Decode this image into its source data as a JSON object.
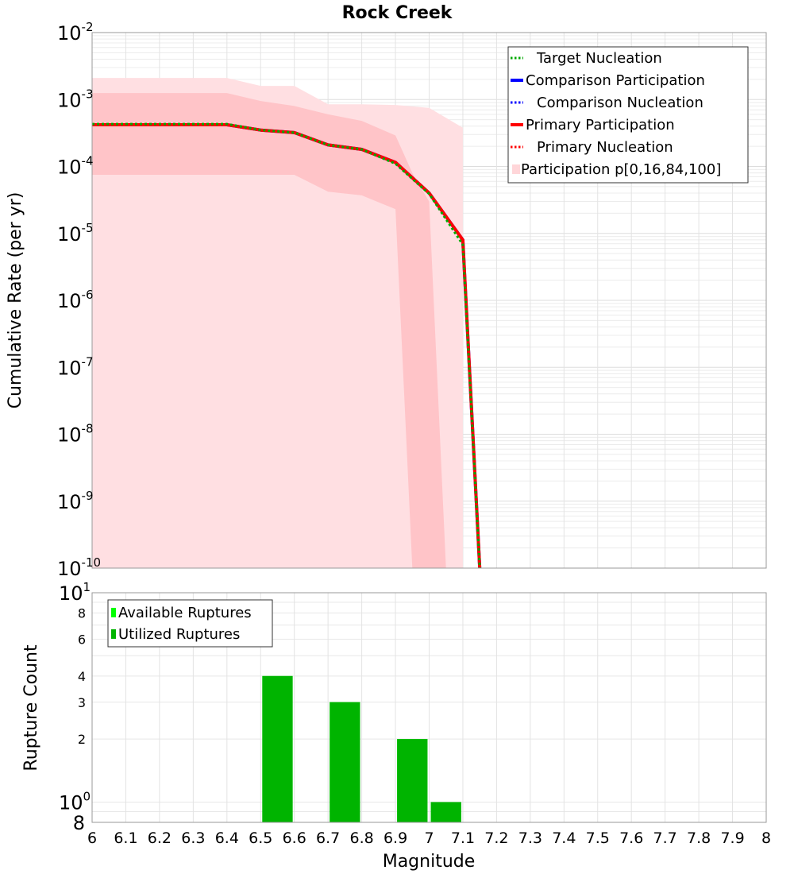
{
  "chart_data": [
    {
      "type": "line",
      "title": "Rock Creek",
      "xlabel": "",
      "ylabel": "Cumulative Rate (per yr)",
      "xlim": [
        6,
        8
      ],
      "ylim": [
        1e-10,
        0.01
      ],
      "yscale": "log",
      "grid": true,
      "legend_position": "top-right",
      "y_ticks": [
        {
          "base": "10",
          "exp": "-2"
        },
        {
          "base": "10",
          "exp": "-3"
        },
        {
          "base": "10",
          "exp": "-4"
        },
        {
          "base": "10",
          "exp": "-5"
        },
        {
          "base": "10",
          "exp": "-6"
        },
        {
          "base": "10",
          "exp": "-7"
        },
        {
          "base": "10",
          "exp": "-8"
        },
        {
          "base": "10",
          "exp": "-9"
        },
        {
          "base": "10",
          "exp": "-10"
        }
      ],
      "legend": [
        {
          "label": "Target Nucleation",
          "color": "#00aa00",
          "style": "dotted"
        },
        {
          "label": "Comparison Participation",
          "color": "#0000ff",
          "style": "solid"
        },
        {
          "label": "Comparison Nucleation",
          "color": "#0000ff",
          "style": "dotted"
        },
        {
          "label": "Primary Participation",
          "color": "#ff0000",
          "style": "solid"
        },
        {
          "label": "Primary Nucleation",
          "color": "#ff0000",
          "style": "dotted"
        },
        {
          "label": "Participation p[0,16,84,100]",
          "color": "#ffd6d9",
          "style": "band"
        }
      ],
      "series": [
        {
          "name": "Target Nucleation",
          "x": [
            6.0,
            6.4,
            6.5,
            6.6,
            6.7,
            6.8,
            6.9,
            7.0,
            7.1,
            7.15
          ],
          "y": [
            0.00043,
            0.00043,
            0.00035,
            0.00032,
            0.00021,
            0.00018,
            0.00011,
            3.9e-05,
            6.8e-06,
            1e-10
          ],
          "color": "#00aa00",
          "style": "dotted"
        },
        {
          "name": "Comparison Participation",
          "x": [
            6.0,
            6.4,
            6.5,
            6.6,
            6.7,
            6.8,
            6.9,
            7.0,
            7.1,
            7.15
          ],
          "y": [
            0.00042,
            0.00042,
            0.00035,
            0.00032,
            0.00021,
            0.00018,
            0.000115,
            4e-05,
            8e-06,
            1e-10
          ],
          "color": "#0000ff",
          "style": "solid"
        },
        {
          "name": "Comparison Nucleation",
          "x": [
            6.0,
            6.4,
            6.5,
            6.6,
            6.7,
            6.8,
            6.9,
            7.0,
            7.1,
            7.15
          ],
          "y": [
            0.00042,
            0.00042,
            0.00035,
            0.00032,
            0.00021,
            0.00018,
            0.000115,
            4e-05,
            8e-06,
            1e-10
          ],
          "color": "#0000ff",
          "style": "dotted"
        },
        {
          "name": "Primary Participation",
          "x": [
            6.0,
            6.4,
            6.5,
            6.6,
            6.7,
            6.8,
            6.9,
            7.0,
            7.1,
            7.15
          ],
          "y": [
            0.00042,
            0.00042,
            0.00035,
            0.00032,
            0.00021,
            0.00018,
            0.000115,
            4e-05,
            8e-06,
            1e-10
          ],
          "color": "#ff0000",
          "style": "solid"
        },
        {
          "name": "Primary Nucleation",
          "x": [
            6.0,
            6.4,
            6.5,
            6.6,
            6.7,
            6.8,
            6.9,
            7.0,
            7.1,
            7.15
          ],
          "y": [
            0.00042,
            0.00042,
            0.00035,
            0.00032,
            0.00021,
            0.00018,
            0.000115,
            4e-05,
            8e-06,
            1e-10
          ],
          "color": "#ff0000",
          "style": "dotted"
        }
      ],
      "bands": [
        {
          "name": "p0-p100",
          "color": "#ffdfe2",
          "x": [
            6.0,
            6.4,
            6.5,
            6.6,
            6.7,
            6.8,
            6.9,
            7.0,
            7.1,
            7.1
          ],
          "upper": [
            0.0021,
            0.0021,
            0.0016,
            0.0016,
            0.00085,
            0.00085,
            0.00083,
            0.00075,
            0.00038,
            1e-10
          ],
          "lower": [
            1e-10,
            1e-10,
            1e-10,
            1e-10,
            1e-10,
            1e-10,
            1e-10,
            1e-10,
            1e-10,
            1e-10
          ]
        },
        {
          "name": "p16-p84",
          "color": "#ffc4c8",
          "x": [
            6.0,
            6.4,
            6.5,
            6.6,
            6.7,
            6.8,
            6.9,
            6.95,
            7.0,
            7.05
          ],
          "upper": [
            0.00125,
            0.00125,
            0.00095,
            0.0008,
            0.0006,
            0.00048,
            0.00029,
            8e-05,
            3e-05,
            1e-10
          ],
          "lower": [
            7.5e-05,
            7.5e-05,
            7.5e-05,
            7.5e-05,
            4.2e-05,
            3.7e-05,
            2.3e-05,
            1e-10,
            1e-10,
            1e-10
          ]
        }
      ]
    },
    {
      "type": "bar",
      "title": "",
      "xlabel": "Magnitude",
      "ylabel": "Rupture Count",
      "xlim": [
        6,
        8
      ],
      "ylim": [
        0.8,
        10
      ],
      "yscale": "log",
      "grid": true,
      "legend_position": "top-left",
      "x_ticks": [
        "6",
        "6.1",
        "6.2",
        "6.3",
        "6.4",
        "6.5",
        "6.6",
        "6.7",
        "6.8",
        "6.9",
        "7",
        "7.1",
        "7.2",
        "7.3",
        "7.4",
        "7.5",
        "7.6",
        "7.7",
        "7.8",
        "7.9",
        "8"
      ],
      "y_ticks": [
        {
          "value": 10,
          "label": "10",
          "exp": "1",
          "size": "big"
        },
        {
          "value": 8,
          "label": "8",
          "exp": "",
          "size": "small"
        },
        {
          "value": 6,
          "label": "6",
          "exp": "",
          "size": "small"
        },
        {
          "value": 4,
          "label": "4",
          "exp": "",
          "size": "small"
        },
        {
          "value": 3,
          "label": "3",
          "exp": "",
          "size": "small"
        },
        {
          "value": 2,
          "label": "2",
          "exp": "",
          "size": "small"
        },
        {
          "value": 1,
          "label": "10",
          "exp": "0",
          "size": "big"
        },
        {
          "value": 0.8,
          "label": "8",
          "exp": "",
          "size": "big"
        }
      ],
      "legend": [
        {
          "label": "Available Ruptures",
          "color": "#00ff00"
        },
        {
          "label": "Utilized Ruptures",
          "color": "#00b400"
        }
      ],
      "series": [
        {
          "name": "Available Ruptures",
          "color": "#00ff00",
          "x": [
            6.55,
            6.75,
            6.95,
            7.05
          ],
          "values": [
            4,
            3,
            2,
            1
          ]
        },
        {
          "name": "Utilized Ruptures",
          "color": "#00b400",
          "x": [
            6.55,
            6.75,
            6.95,
            7.05
          ],
          "values": [
            4,
            3,
            2,
            1
          ]
        }
      ]
    }
  ]
}
